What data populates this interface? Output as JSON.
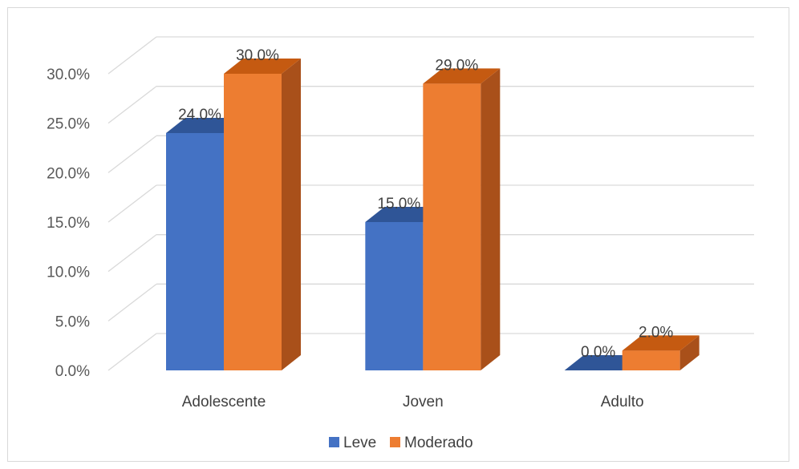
{
  "chart_data": {
    "type": "bar",
    "title": "",
    "xlabel": "",
    "ylabel": "",
    "categories": [
      "Adolescente",
      "Joven",
      "Adulto"
    ],
    "series": [
      {
        "name": "Leve",
        "values": [
          24.0,
          15.0,
          0.0
        ],
        "color": "#4472C4",
        "top_color": "#2F5597",
        "side_color": "#2E4F8C"
      },
      {
        "name": "Moderado",
        "values": [
          30.0,
          29.0,
          2.0
        ],
        "color": "#ED7D31",
        "top_color": "#C55A11",
        "side_color": "#A9501A"
      }
    ],
    "ylim": [
      0,
      30
    ],
    "yticks": [
      0,
      5,
      10,
      15,
      20,
      25,
      30
    ],
    "ytick_labels": [
      "0.0%",
      "5.0%",
      "10.0%",
      "15.0%",
      "20.0%",
      "25.0%",
      "30.0%"
    ],
    "data_labels": [
      [
        "24.0%",
        "15.0%",
        "0.0%"
      ],
      [
        "30.0%",
        "29.0%",
        "2.0%"
      ]
    ],
    "legend_position": "bottom",
    "grid": true,
    "style": "3d-column"
  }
}
